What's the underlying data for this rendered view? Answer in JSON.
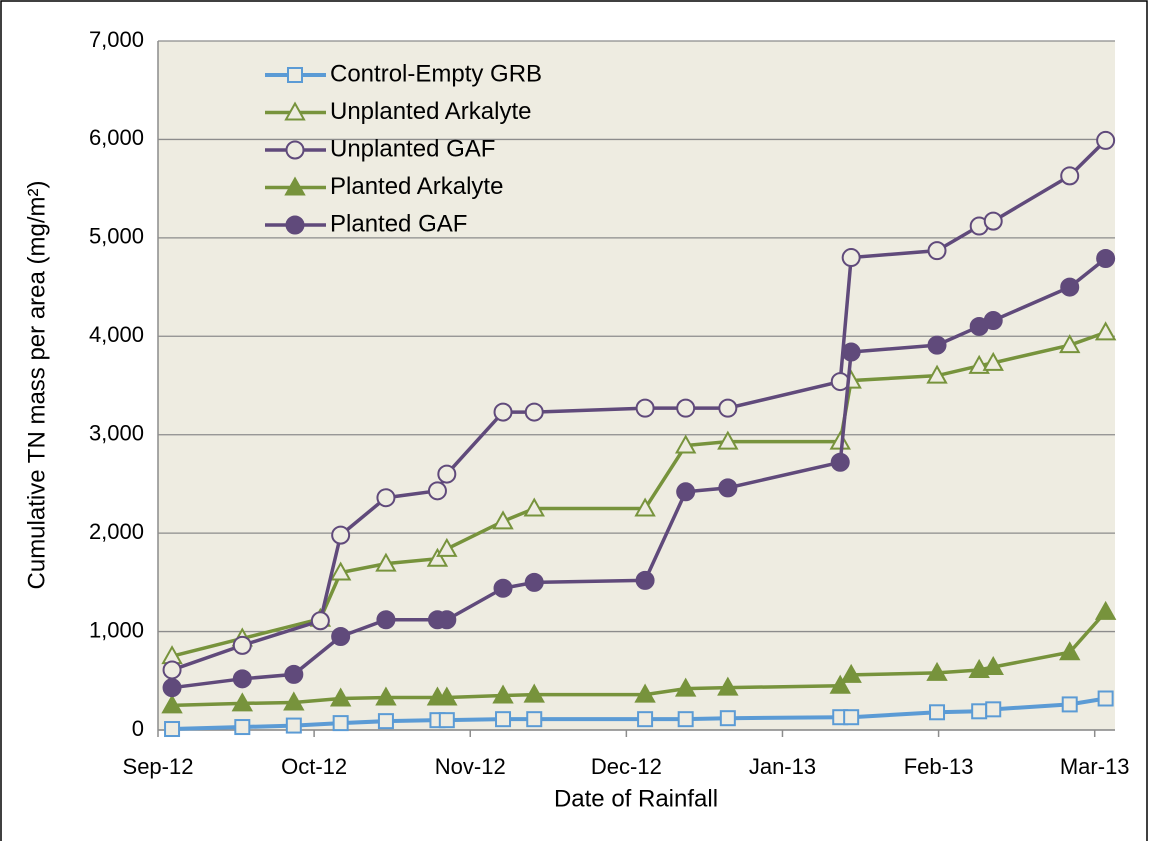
{
  "chart_data": {
    "type": "line",
    "xlabel": "Date of Rainfall",
    "ylabel": "Cumulative TN mass per area (mg/m²)",
    "xlim": [
      0,
      6.13
    ],
    "xticks": [
      {
        "value": 0,
        "label": "Sep-12"
      },
      {
        "value": 1,
        "label": "Oct-12"
      },
      {
        "value": 2,
        "label": "Nov-12"
      },
      {
        "value": 3,
        "label": "Dec-12"
      },
      {
        "value": 4,
        "label": "Jan-13"
      },
      {
        "value": 5,
        "label": "Feb-13"
      },
      {
        "value": 6,
        "label": "Mar-13"
      }
    ],
    "ylim": [
      0,
      7000
    ],
    "yticks": [
      0,
      {
        "value": 1000,
        "label": "1,000"
      },
      {
        "value": 2000,
        "label": "2,000"
      },
      {
        "value": 3000,
        "label": "3,000"
      },
      {
        "value": 4000,
        "label": "4,000"
      },
      {
        "value": 5000,
        "label": "5,000"
      },
      {
        "value": 6000,
        "label": "6,000"
      },
      {
        "value": 7000,
        "label": "7,000"
      }
    ],
    "grid": true,
    "background": "#eeece1",
    "series": [
      {
        "name": "Control-Empty GRB",
        "color": "#5b9bd5",
        "marker": "square",
        "filled": false,
        "x": [
          0.09,
          0.54,
          0.87,
          1.17,
          1.46,
          1.79,
          1.85,
          2.21,
          2.41,
          3.12,
          3.38,
          3.65,
          4.37,
          4.44,
          4.99,
          5.26,
          5.35,
          5.84,
          6.07
        ],
        "values": [
          10,
          30,
          45,
          70,
          90,
          100,
          100,
          110,
          110,
          110,
          110,
          120,
          130,
          130,
          180,
          190,
          210,
          260,
          320
        ]
      },
      {
        "name": "Unplanted Arkalyte",
        "color": "#77933c",
        "marker": "triangle",
        "filled": false,
        "x": [
          0.09,
          0.54,
          1.04,
          1.17,
          1.46,
          1.79,
          1.85,
          2.21,
          2.41,
          3.12,
          3.38,
          3.65,
          4.37,
          4.44,
          4.99,
          5.26,
          5.35,
          5.84,
          6.07
        ],
        "values": [
          750,
          930,
          1130,
          1600,
          1690,
          1740,
          1840,
          2120,
          2250,
          2250,
          2890,
          2930,
          2930,
          3550,
          3600,
          3700,
          3730,
          3910,
          4040
        ]
      },
      {
        "name": "Unplanted GAF",
        "color": "#604a7b",
        "marker": "circle",
        "filled": false,
        "x": [
          0.09,
          0.54,
          1.04,
          1.17,
          1.46,
          1.79,
          1.85,
          2.21,
          2.41,
          3.12,
          3.38,
          3.65,
          4.37,
          4.44,
          4.99,
          5.26,
          5.35,
          5.84,
          6.07
        ],
        "values": [
          610,
          860,
          1110,
          1980,
          2360,
          2430,
          2600,
          3230,
          3230,
          3270,
          3270,
          3270,
          3540,
          4800,
          4870,
          5120,
          5170,
          5630,
          5990
        ]
      },
      {
        "name": "Planted Arkalyte",
        "color": "#77933c",
        "marker": "triangle",
        "filled": true,
        "x": [
          0.09,
          0.54,
          0.87,
          1.17,
          1.46,
          1.79,
          1.85,
          2.21,
          2.41,
          3.12,
          3.38,
          3.65,
          4.37,
          4.44,
          4.99,
          5.26,
          5.35,
          5.84,
          6.07
        ],
        "values": [
          250,
          270,
          280,
          320,
          330,
          330,
          330,
          350,
          360,
          360,
          420,
          430,
          450,
          560,
          580,
          610,
          640,
          790,
          1200
        ]
      },
      {
        "name": "Planted GAF",
        "color": "#604a7b",
        "marker": "circle",
        "filled": true,
        "x": [
          0.09,
          0.54,
          0.87,
          1.17,
          1.46,
          1.79,
          1.85,
          2.21,
          2.41,
          3.12,
          3.38,
          3.65,
          4.37,
          4.44,
          4.99,
          5.26,
          5.35,
          5.84,
          6.07
        ],
        "values": [
          430,
          520,
          565,
          950,
          1120,
          1120,
          1120,
          1440,
          1500,
          1520,
          2420,
          2460,
          2720,
          3840,
          3910,
          4100,
          4160,
          4500,
          4790
        ]
      }
    ]
  }
}
